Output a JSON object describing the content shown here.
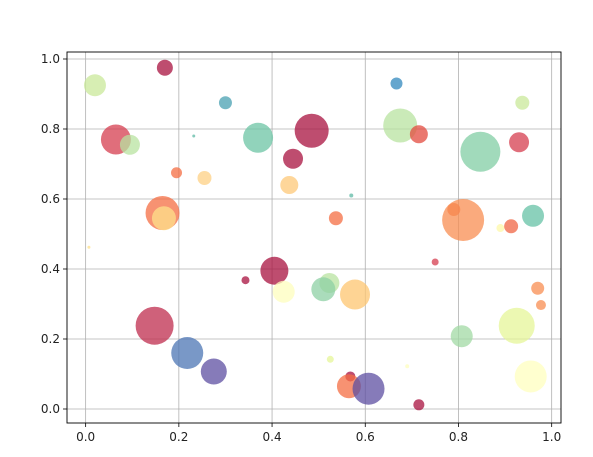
{
  "chart_data": {
    "type": "scatter",
    "title": "",
    "xlabel": "",
    "ylabel": "",
    "xlim": [
      -0.04,
      1.02
    ],
    "ylim": [
      -0.04,
      1.02
    ],
    "grid": true,
    "x_ticks": [
      0.0,
      0.2,
      0.4,
      0.6,
      0.8,
      1.0
    ],
    "x_tick_labels": [
      "0.0",
      "0.2",
      "0.4",
      "0.6",
      "0.8",
      "1.0"
    ],
    "y_ticks": [
      0.0,
      0.2,
      0.4,
      0.6,
      0.8,
      1.0
    ],
    "y_tick_labels": [
      "0.0",
      "0.2",
      "0.4",
      "0.6",
      "0.8",
      "1.0"
    ],
    "colormap": "Spectral",
    "points": [
      {
        "x": 0.02,
        "y": 0.925,
        "size": 11,
        "color": "#c9e89a"
      },
      {
        "x": 0.17,
        "y": 0.975,
        "size": 8,
        "color": "#a8113f"
      },
      {
        "x": 0.3,
        "y": 0.875,
        "size": 6.5,
        "color": "#48a0b2"
      },
      {
        "x": 0.065,
        "y": 0.77,
        "size": 15,
        "color": "#d53e4f"
      },
      {
        "x": 0.095,
        "y": 0.755,
        "size": 10,
        "color": "#b8e3a0"
      },
      {
        "x": 0.232,
        "y": 0.78,
        "size": 1.5,
        "color": "#5fb9a5"
      },
      {
        "x": 0.37,
        "y": 0.775,
        "size": 15,
        "color": "#6cc4a4"
      },
      {
        "x": 0.445,
        "y": 0.715,
        "size": 10,
        "color": "#a8113f"
      },
      {
        "x": 0.485,
        "y": 0.795,
        "size": 17,
        "color": "#a8113f"
      },
      {
        "x": 0.195,
        "y": 0.675,
        "size": 5.5,
        "color": "#f46d43"
      },
      {
        "x": 0.255,
        "y": 0.66,
        "size": 7,
        "color": "#fed084"
      },
      {
        "x": 0.437,
        "y": 0.64,
        "size": 9,
        "color": "#fdc878"
      },
      {
        "x": 0.57,
        "y": 0.61,
        "size": 2,
        "color": "#5fb9a5"
      },
      {
        "x": 0.165,
        "y": 0.56,
        "size": 17,
        "color": "#f46d43"
      },
      {
        "x": 0.168,
        "y": 0.545,
        "size": 12,
        "color": "#fee08b"
      },
      {
        "x": 0.537,
        "y": 0.545,
        "size": 7,
        "color": "#f46d43"
      },
      {
        "x": 0.007,
        "y": 0.462,
        "size": 1.5,
        "color": "#fee08b"
      },
      {
        "x": 0.667,
        "y": 0.93,
        "size": 6,
        "color": "#3288bd"
      },
      {
        "x": 0.675,
        "y": 0.81,
        "size": 17,
        "color": "#b8e3a0"
      },
      {
        "x": 0.715,
        "y": 0.785,
        "size": 9,
        "color": "#e34b3f"
      },
      {
        "x": 0.847,
        "y": 0.735,
        "size": 20,
        "color": "#81cda4"
      },
      {
        "x": 0.937,
        "y": 0.875,
        "size": 7,
        "color": "#c9e89a"
      },
      {
        "x": 0.93,
        "y": 0.762,
        "size": 10,
        "color": "#d53e4f"
      },
      {
        "x": 0.79,
        "y": 0.57,
        "size": 6.5,
        "color": "#f46d43"
      },
      {
        "x": 0.81,
        "y": 0.54,
        "size": 21,
        "color": "#f88d52"
      },
      {
        "x": 0.89,
        "y": 0.517,
        "size": 4,
        "color": "#fdf8a8"
      },
      {
        "x": 0.913,
        "y": 0.522,
        "size": 7,
        "color": "#f06544"
      },
      {
        "x": 0.96,
        "y": 0.552,
        "size": 11,
        "color": "#66c2a5"
      },
      {
        "x": 0.75,
        "y": 0.42,
        "size": 3.5,
        "color": "#d53e4f"
      },
      {
        "x": 0.405,
        "y": 0.395,
        "size": 14,
        "color": "#a8113f"
      },
      {
        "x": 0.343,
        "y": 0.368,
        "size": 4,
        "color": "#a8113f"
      },
      {
        "x": 0.523,
        "y": 0.36,
        "size": 10,
        "color": "#b8e3a0"
      },
      {
        "x": 0.51,
        "y": 0.342,
        "size": 12,
        "color": "#8ed0a4"
      },
      {
        "x": 0.425,
        "y": 0.335,
        "size": 11,
        "color": "#fefebe"
      },
      {
        "x": 0.578,
        "y": 0.327,
        "size": 15,
        "color": "#fdc570"
      },
      {
        "x": 0.148,
        "y": 0.238,
        "size": 19,
        "color": "#bf2c4d"
      },
      {
        "x": 0.218,
        "y": 0.16,
        "size": 16,
        "color": "#4c75b4"
      },
      {
        "x": 0.275,
        "y": 0.107,
        "size": 13,
        "color": "#5e4fa2"
      },
      {
        "x": 0.525,
        "y": 0.142,
        "size": 3.5,
        "color": "#e6f598"
      },
      {
        "x": 0.568,
        "y": 0.093,
        "size": 5,
        "color": "#a8113f"
      },
      {
        "x": 0.565,
        "y": 0.065,
        "size": 12,
        "color": "#f46d43"
      },
      {
        "x": 0.607,
        "y": 0.058,
        "size": 16,
        "color": "#5e4fa2"
      },
      {
        "x": 0.69,
        "y": 0.122,
        "size": 2,
        "color": "#fefebe"
      },
      {
        "x": 0.715,
        "y": 0.012,
        "size": 5.5,
        "color": "#a8113f"
      },
      {
        "x": 0.807,
        "y": 0.208,
        "size": 11,
        "color": "#a2d9a4"
      },
      {
        "x": 0.925,
        "y": 0.238,
        "size": 18,
        "color": "#e6f598"
      },
      {
        "x": 0.955,
        "y": 0.093,
        "size": 16,
        "color": "#ffffbf"
      },
      {
        "x": 0.97,
        "y": 0.345,
        "size": 6.5,
        "color": "#f88d52"
      },
      {
        "x": 0.977,
        "y": 0.297,
        "size": 5,
        "color": "#f88d52"
      }
    ]
  }
}
